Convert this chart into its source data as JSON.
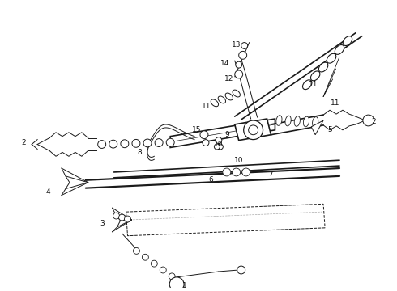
{
  "background_color": "#ffffff",
  "line_color": "#1a1a1a",
  "label_color": "#111111",
  "figsize": [
    4.9,
    3.6
  ],
  "dpi": 100
}
